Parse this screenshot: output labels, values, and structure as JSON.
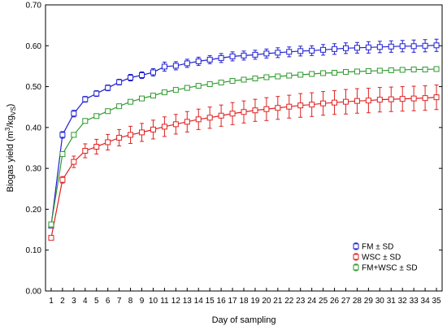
{
  "chart_data": {
    "type": "line",
    "xlabel": "Day of sampling",
    "ylabel_main": "Biogas yield (m",
    "ylabel_sup": "3",
    "ylabel_mid": "/kg",
    "ylabel_sub": "VS",
    "ylabel_end": ")",
    "xlim": [
      0.5,
      35.5
    ],
    "ylim": [
      0,
      0.7
    ],
    "x": [
      1,
      2,
      3,
      4,
      5,
      6,
      7,
      8,
      9,
      10,
      11,
      12,
      13,
      14,
      15,
      16,
      17,
      18,
      19,
      20,
      21,
      22,
      23,
      24,
      25,
      26,
      27,
      28,
      29,
      30,
      31,
      32,
      33,
      34,
      35
    ],
    "x_tick_labels": [
      "1",
      "2",
      "3",
      "4",
      "5",
      "6",
      "7",
      "8",
      "9",
      "10",
      "11",
      "12",
      "13",
      "14",
      "15",
      "16",
      "17",
      "18",
      "19",
      "20",
      "21",
      "22",
      "23",
      "24",
      "25",
      "26",
      "27",
      "28",
      "29",
      "30",
      "31",
      "32",
      "33",
      "34",
      "35"
    ],
    "y_ticks": [
      0,
      0.1,
      0.2,
      0.3,
      0.4,
      0.5,
      0.6,
      0.7
    ],
    "y_tick_labels": [
      "0.00",
      "0.10",
      "0.20",
      "0.30",
      "0.40",
      "0.50",
      "0.60",
      "0.70"
    ],
    "legend_position": "bottom-right",
    "series": [
      {
        "name": "FM ± SD",
        "color": "#1f1fd1",
        "values": [
          0.16,
          0.382,
          0.434,
          0.469,
          0.483,
          0.497,
          0.511,
          0.522,
          0.528,
          0.535,
          0.549,
          0.551,
          0.557,
          0.562,
          0.566,
          0.57,
          0.574,
          0.576,
          0.578,
          0.581,
          0.583,
          0.585,
          0.587,
          0.588,
          0.59,
          0.592,
          0.594,
          0.595,
          0.596,
          0.597,
          0.598,
          0.599,
          0.599,
          0.6,
          0.601
        ],
        "errors": [
          0.005,
          0.008,
          0.008,
          0.007,
          0.007,
          0.007,
          0.007,
          0.008,
          0.008,
          0.009,
          0.011,
          0.01,
          0.01,
          0.01,
          0.01,
          0.011,
          0.011,
          0.011,
          0.011,
          0.011,
          0.012,
          0.012,
          0.012,
          0.012,
          0.013,
          0.013,
          0.013,
          0.013,
          0.014,
          0.014,
          0.014,
          0.014,
          0.015,
          0.015,
          0.015
        ]
      },
      {
        "name": "WSC ± SD",
        "color": "#e02020",
        "values": [
          0.13,
          0.272,
          0.316,
          0.343,
          0.353,
          0.364,
          0.375,
          0.382,
          0.388,
          0.395,
          0.402,
          0.408,
          0.414,
          0.42,
          0.424,
          0.429,
          0.434,
          0.438,
          0.442,
          0.445,
          0.448,
          0.451,
          0.454,
          0.456,
          0.459,
          0.461,
          0.463,
          0.465,
          0.466,
          0.468,
          0.469,
          0.47,
          0.471,
          0.472,
          0.474
        ],
        "errors": [
          0.004,
          0.008,
          0.014,
          0.017,
          0.018,
          0.019,
          0.02,
          0.021,
          0.022,
          0.023,
          0.024,
          0.024,
          0.025,
          0.025,
          0.026,
          0.026,
          0.027,
          0.027,
          0.027,
          0.028,
          0.028,
          0.028,
          0.029,
          0.029,
          0.029,
          0.029,
          0.03,
          0.03,
          0.03,
          0.03,
          0.03,
          0.03,
          0.03,
          0.03,
          0.03
        ]
      },
      {
        "name": "FM+WSC ± SD",
        "color": "#2f9a2f",
        "values": [
          0.163,
          0.335,
          0.382,
          0.416,
          0.428,
          0.44,
          0.452,
          0.463,
          0.471,
          0.478,
          0.486,
          0.492,
          0.497,
          0.502,
          0.506,
          0.51,
          0.514,
          0.517,
          0.52,
          0.523,
          0.525,
          0.527,
          0.529,
          0.531,
          0.533,
          0.534,
          0.536,
          0.537,
          0.538,
          0.539,
          0.54,
          0.541,
          0.542,
          0.542,
          0.543
        ],
        "errors": [
          0.003,
          0.004,
          0.004,
          0.004,
          0.004,
          0.004,
          0.004,
          0.004,
          0.004,
          0.004,
          0.004,
          0.004,
          0.004,
          0.004,
          0.004,
          0.004,
          0.004,
          0.004,
          0.004,
          0.004,
          0.004,
          0.004,
          0.004,
          0.004,
          0.004,
          0.004,
          0.004,
          0.004,
          0.004,
          0.004,
          0.004,
          0.004,
          0.004,
          0.004,
          0.004
        ]
      }
    ]
  }
}
